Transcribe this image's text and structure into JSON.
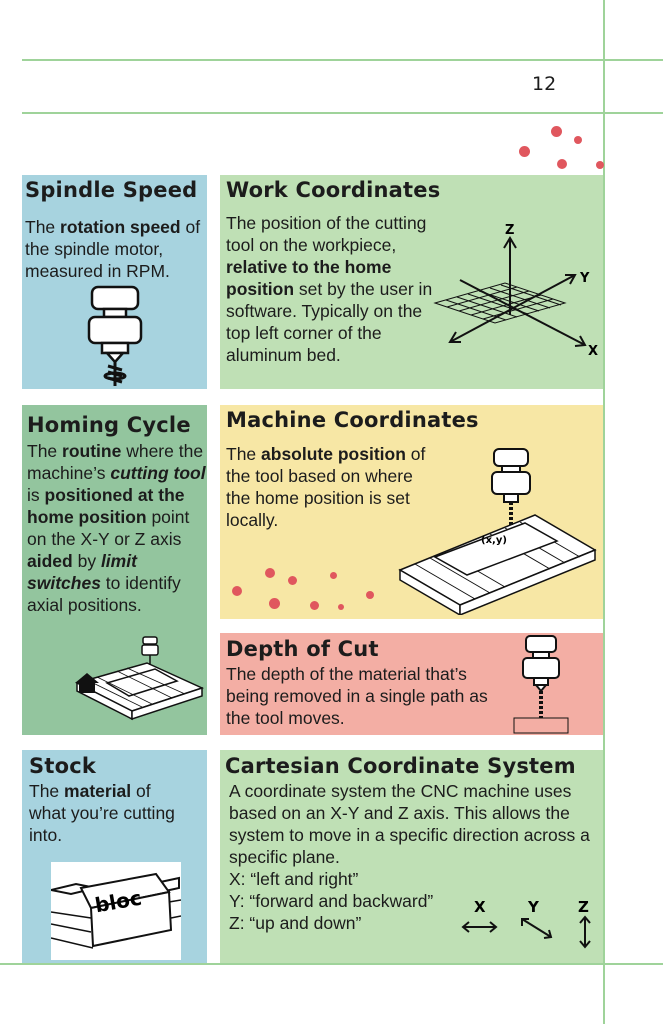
{
  "page": {
    "number": "12"
  },
  "cards": {
    "spindle_speed": {
      "title": "Spindle Speed",
      "body_parts": [
        "The ",
        "rotation speed",
        " of the spindle motor, measured in RPM."
      ]
    },
    "work_coordinates": {
      "title": "Work Coordinates",
      "body_parts": [
        "The position of the cutting tool on the workpiece, ",
        "relative to the home position",
        " set by the user in software. Typically on the top left corner of the aluminum bed."
      ],
      "axis_labels": {
        "z": "Z",
        "y": "Y",
        "x": "X"
      }
    },
    "homing_cycle": {
      "title": "Homing Cycle",
      "body_parts": [
        "The ",
        "routine",
        " where the machine’s ",
        "cutting tool",
        " is ",
        "positioned at the home position",
        " point on the X-Y or Z axis ",
        "aided",
        " by ",
        "limit switches",
        " to identify axial positions."
      ]
    },
    "machine_coordinates": {
      "title": "Machine Coordinates",
      "body_parts": [
        "The ",
        "absolute position",
        " of the tool based on where the home position is set locally."
      ],
      "point_label": "(x,y)"
    },
    "depth_of_cut": {
      "title": "Depth of Cut",
      "body": "The depth of the material that’s being removed in a single path as the tool moves."
    },
    "stock": {
      "title": "Stock",
      "body_parts": [
        "The ",
        "material",
        " of what you’re cutting into."
      ],
      "block_label": "bloc"
    },
    "cartesian": {
      "title": "Cartesian Coordinate System",
      "body": "A coordinate system the CNC machine uses based on an X-Y and Z axis. This allows the system to move in a specific direction across a specific plane.",
      "lines": [
        "X: “left and right”",
        "Y: “forward and backward”",
        "Z: “up and down”"
      ],
      "axis_labels": {
        "x": "X",
        "y": "Y",
        "z": "Z"
      }
    }
  },
  "colors": {
    "blue": "#a7d3df",
    "green": "#bfe0b5",
    "dark_green": "#93c59e",
    "yellow": "#f7e7a5",
    "salmon": "#f3aea4",
    "dots": "#e0575e",
    "rules": "#9fd39a"
  }
}
